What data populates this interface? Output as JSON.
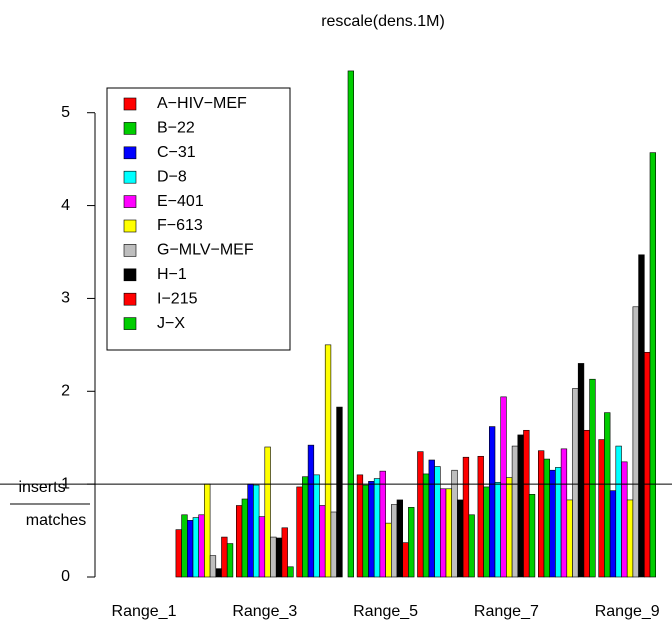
{
  "chart_data": {
    "type": "bar",
    "title": "rescale(dens.1M)",
    "categories": [
      "Range_1",
      null,
      "Range_3",
      null,
      "Range_5",
      null,
      "Range_7",
      null,
      "Range_9"
    ],
    "series": [
      {
        "name": "A−HIV−MEF",
        "color": "#FF0000",
        "values": [
          null,
          0.51,
          0.77,
          0.97,
          1.1,
          1.35,
          1.3,
          1.36,
          1.48
        ]
      },
      {
        "name": "B−22",
        "color": "#00CD00",
        "values": [
          null,
          0.67,
          0.84,
          1.08,
          0.99,
          1.11,
          0.97,
          1.27,
          1.77
        ]
      },
      {
        "name": "C−31",
        "color": "#0000FF",
        "values": [
          null,
          0.61,
          1.0,
          1.42,
          1.03,
          1.26,
          1.62,
          1.15,
          0.93
        ]
      },
      {
        "name": "D−8",
        "color": "#00FFFF",
        "values": [
          null,
          0.64,
          0.99,
          1.1,
          1.06,
          1.19,
          1.02,
          1.18,
          1.41
        ]
      },
      {
        "name": "E−401",
        "color": "#FF00FF",
        "values": [
          null,
          0.67,
          0.65,
          0.77,
          1.14,
          0.95,
          1.94,
          1.38,
          1.24
        ]
      },
      {
        "name": "F−613",
        "color": "#FFFF00",
        "values": [
          null,
          1.0,
          1.4,
          2.5,
          0.58,
          0.95,
          1.07,
          0.83,
          0.83
        ]
      },
      {
        "name": "G−MLV−MEF",
        "color": "#BEBEBE",
        "values": [
          null,
          0.23,
          0.43,
          0.7,
          0.78,
          1.15,
          1.41,
          2.03,
          2.91
        ]
      },
      {
        "name": "H−1",
        "color": "#000000",
        "values": [
          null,
          0.09,
          0.42,
          1.83,
          0.83,
          0.83,
          1.53,
          2.3,
          3.47
        ]
      },
      {
        "name": "I−215",
        "color": "#FF0000",
        "values": [
          null,
          0.43,
          0.53,
          0,
          0.37,
          1.29,
          1.58,
          1.58,
          2.42
        ]
      },
      {
        "name": "J−X",
        "color": "#00CD00",
        "values": [
          null,
          0.36,
          0.11,
          5.45,
          0.75,
          0.67,
          0.89,
          2.13,
          4.57
        ]
      }
    ],
    "ylim": [
      0,
      5.6
    ],
    "yticks": [
      0,
      1,
      2,
      3,
      4,
      5
    ],
    "reference_line": 1,
    "annotations": [
      "inserts",
      "matches"
    ],
    "legend": "top-left"
  }
}
